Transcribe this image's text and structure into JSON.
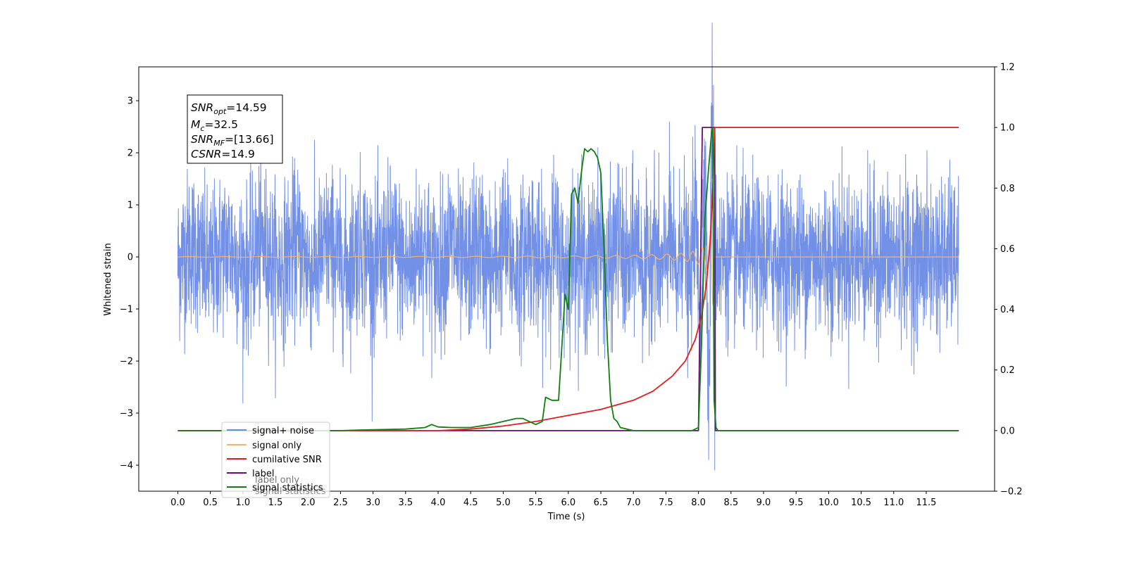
{
  "chart_data": {
    "type": "line",
    "xlabel": "Time (s)",
    "ylabel": "Whitened strain",
    "xlim": [
      -0.6,
      12.55
    ],
    "ylim_left": [
      -4.5,
      3.65
    ],
    "ylim_right": [
      -0.2,
      1.2
    ],
    "x_ticks": [
      "0.0",
      "0.5",
      "1.0",
      "1.5",
      "2.0",
      "2.5",
      "3.0",
      "3.5",
      "4.0",
      "4.5",
      "5.0",
      "5.5",
      "6.0",
      "6.5",
      "7.0",
      "7.5",
      "8.0",
      "8.5",
      "9.0",
      "9.5",
      "10.0",
      "10.5",
      "11.0",
      "11.5"
    ],
    "y_left_ticks": [
      "−4",
      "−3",
      "−2",
      "−1",
      "0",
      "1",
      "2",
      "3"
    ],
    "y_right_ticks": [
      "−0.2",
      "0.0",
      "0.2",
      "0.4",
      "0.6",
      "0.8",
      "1.0",
      "1.2"
    ],
    "annotation": {
      "snr_opt": {
        "base": "SNR",
        "sub": "opt",
        "value": "=14.59"
      },
      "mc": {
        "base": "M",
        "sub": "c",
        "value": "=32.5"
      },
      "snr_mf": {
        "base": "SNR",
        "sub": "MF",
        "value": "=[13.66]"
      },
      "csnr": {
        "base": "CSNR",
        "sub": "",
        "value": "=14.9"
      }
    },
    "legend": {
      "placement": "lower-left",
      "entries": [
        "signal+ noise",
        "signal only",
        "cumilative SNR",
        "label",
        "signal statistics"
      ],
      "ghost_text": [
        "label only",
        "signal statistics"
      ]
    },
    "series": [
      {
        "name": "signal+ noise",
        "axis": "left",
        "color": "#6b8ae6",
        "description": "whitened noise, roughly within -2.5..2.5, spikes to 3.3 and -4.1 near t=8.25",
        "x_range": [
          0,
          12.0
        ],
        "envelope": 2.4,
        "spike_peaks": [
          [
            8.23,
            3.3
          ],
          [
            8.25,
            -4.1
          ],
          [
            8.2,
            2.8
          ]
        ]
      },
      {
        "name": "signal only",
        "axis": "left",
        "color": "#f4b26a",
        "chirp": {
          "t_start": 0,
          "t_merge": 8.23,
          "t_end": 12.0,
          "peak_amplitude": 3.2
        }
      },
      {
        "name": "cumilative SNR",
        "axis": "right",
        "color": "#e61c1c",
        "x": [
          0.0,
          4.0,
          4.5,
          5.0,
          5.5,
          6.0,
          6.5,
          7.0,
          7.3,
          7.6,
          7.8,
          7.95,
          8.05,
          8.12,
          8.18,
          8.22,
          8.25,
          12.0
        ],
        "y": [
          0.0,
          0.0,
          0.005,
          0.015,
          0.03,
          0.05,
          0.07,
          0.1,
          0.13,
          0.18,
          0.23,
          0.3,
          0.38,
          0.48,
          0.62,
          0.8,
          1.0,
          1.0
        ]
      },
      {
        "name": "label",
        "axis": "right",
        "color": "#6a0d75",
        "x": [
          0.0,
          8.0,
          8.06,
          8.25,
          8.26,
          12.0
        ],
        "y": [
          0.0,
          0.0,
          1.0,
          1.0,
          0.0,
          0.0
        ]
      },
      {
        "name": "signal statistics",
        "axis": "right",
        "color": "#0f800f",
        "x": [
          0.0,
          2.5,
          3.0,
          3.5,
          3.8,
          3.9,
          4.0,
          4.2,
          4.5,
          4.8,
          5.0,
          5.2,
          5.3,
          5.4,
          5.5,
          5.6,
          5.65,
          5.75,
          5.85,
          5.95,
          6.0,
          6.05,
          6.1,
          6.15,
          6.2,
          6.25,
          6.3,
          6.35,
          6.4,
          6.45,
          6.5,
          6.55,
          6.6,
          6.65,
          6.7,
          6.75,
          6.8,
          6.9,
          7.0,
          7.5,
          7.9,
          8.0,
          8.05,
          8.1,
          8.15,
          8.2,
          8.22,
          8.24,
          8.27,
          8.3,
          8.5,
          12.0
        ],
        "y": [
          0.0,
          0.0,
          0.003,
          0.005,
          0.01,
          0.02,
          0.012,
          0.01,
          0.01,
          0.02,
          0.03,
          0.04,
          0.04,
          0.03,
          0.02,
          0.03,
          0.11,
          0.1,
          0.1,
          0.45,
          0.4,
          0.78,
          0.8,
          0.75,
          0.85,
          0.93,
          0.92,
          0.93,
          0.92,
          0.9,
          0.85,
          0.6,
          0.3,
          0.1,
          0.04,
          0.03,
          0.01,
          0.005,
          0.0,
          0.0,
          0.0,
          0.01,
          0.3,
          0.7,
          0.85,
          0.98,
          1.0,
          0.1,
          0.01,
          0.0,
          0.0,
          0.0
        ]
      }
    ]
  }
}
